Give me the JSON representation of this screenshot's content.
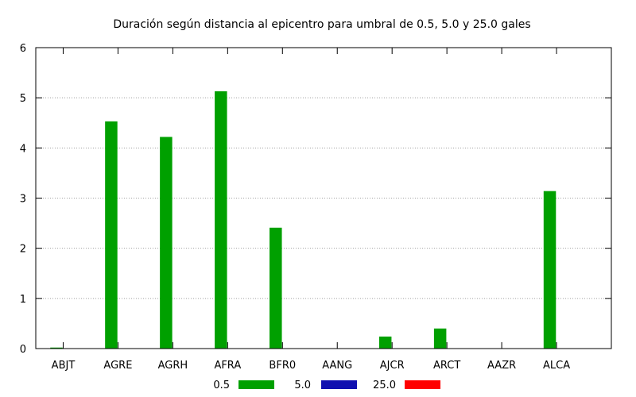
{
  "chart_data": {
    "type": "bar",
    "title": "Duración según distancia al epicentro para umbral de 0.5, 5.0 y 25.0 gales",
    "xlabel": "",
    "ylabel": "",
    "categories": [
      "ABJT",
      "AGRE",
      "AGRH",
      "AFRA",
      "BFR0",
      "AANG",
      "AJCR",
      "ARCT",
      "AAZR",
      "ALCA"
    ],
    "series": [
      {
        "name": "0.5",
        "color": "#00a000",
        "values": [
          0.02,
          4.53,
          4.22,
          5.13,
          2.41,
          0,
          0.24,
          0.4,
          0,
          3.14
        ]
      },
      {
        "name": "5.0",
        "color": "#1010b0",
        "values": [
          0,
          0,
          0,
          0,
          0,
          0,
          0,
          0,
          0,
          0
        ]
      },
      {
        "name": "25.0",
        "color": "#ff0000",
        "values": [
          0,
          0,
          0,
          0,
          0,
          0,
          0,
          0,
          0,
          0
        ]
      }
    ],
    "yticks": [
      "0",
      "1",
      "2",
      "3",
      "4",
      "5",
      "6"
    ],
    "ylim": [
      0,
      6
    ],
    "grid": true,
    "legend_position": "bottom"
  }
}
